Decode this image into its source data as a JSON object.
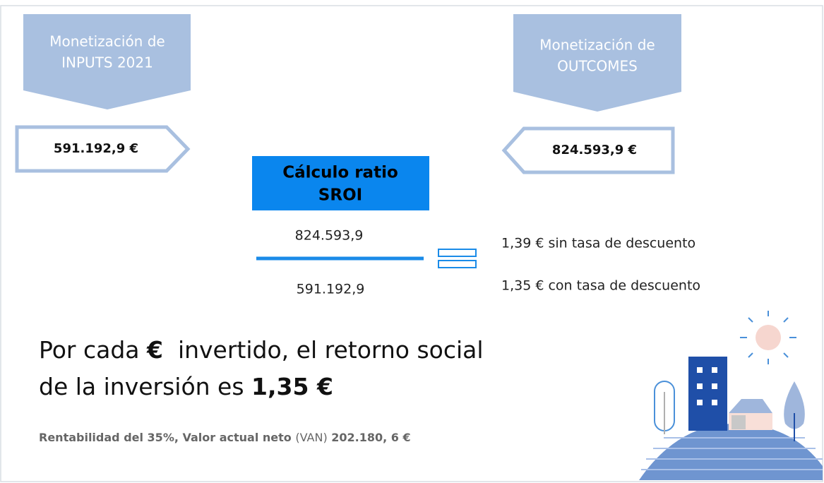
{
  "inputs": {
    "title_lines": [
      "Monetización de",
      "INPUTS 2021"
    ],
    "value": "591.192,9 €"
  },
  "outcomes": {
    "title_lines": [
      "Monetización de",
      "OUTCOMES"
    ],
    "value": "824.593,9 €"
  },
  "ratio": {
    "title_lines": [
      "Cálculo ratio",
      "SROI"
    ],
    "numerator": "824.593,9",
    "denominator": "591.192,9"
  },
  "results": [
    "1,39 € sin tasa de descuento",
    "1,35 € con tasa de descuento"
  ],
  "summary": {
    "line1": [
      "Por cada ",
      "€",
      "  invertido, el retorno social"
    ],
    "line2": [
      "de la inversión es ",
      "1,35 €"
    ]
  },
  "footnote": [
    "Rentabilidad del 35%, Valor actual neto ",
    "(VAN)",
    " 202.180, 6 €"
  ]
}
